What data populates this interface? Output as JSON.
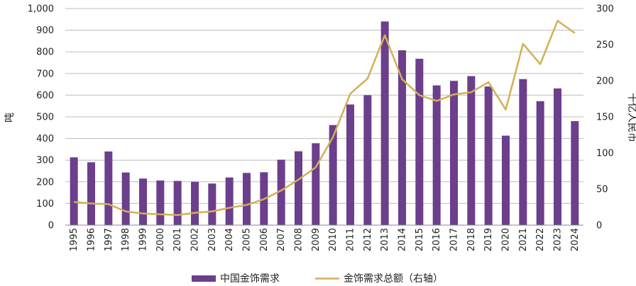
{
  "chart_data": {
    "type": "bar",
    "title": "",
    "xlabel": "",
    "ylabel_left": "吨",
    "ylabel_right": "十亿人民币",
    "ylim_left": [
      0,
      1000
    ],
    "ylim_right": [
      0,
      300
    ],
    "yticks_left": [
      "0",
      "100",
      "200",
      "300",
      "400",
      "500",
      "600",
      "700",
      "800",
      "900",
      "1,000"
    ],
    "yticks_right": [
      "0",
      "50",
      "100",
      "150",
      "200",
      "250",
      "300"
    ],
    "grid": true,
    "legend_position": "bottom",
    "categories": [
      "1995",
      "1996",
      "1997",
      "1998",
      "1999",
      "2000",
      "2001",
      "2002",
      "2003",
      "2004",
      "2005",
      "2006",
      "2007",
      "2008",
      "2009",
      "2010",
      "2011",
      "2012",
      "2013",
      "2014",
      "2015",
      "2016",
      "2017",
      "2018",
      "2019",
      "2020",
      "2021",
      "2022",
      "2023",
      "2024"
    ],
    "series": [
      {
        "name": "中国金饰需求",
        "type": "bar",
        "axis": "left",
        "color": "#6B3F8C",
        "values": [
          313,
          290,
          340,
          243,
          215,
          206,
          204,
          200,
          192,
          220,
          241,
          244,
          302,
          341,
          378,
          462,
          557,
          600,
          940,
          807,
          768,
          645,
          666,
          688,
          640,
          413,
          674,
          572,
          631,
          480
        ]
      },
      {
        "name": "金饰需求总额（右轴）",
        "type": "line",
        "axis": "right",
        "color": "#D4B055",
        "values": [
          32,
          30,
          29,
          19,
          16,
          15,
          14,
          17,
          19,
          24,
          28,
          36,
          48,
          63,
          80,
          122,
          182,
          203,
          263,
          202,
          180,
          172,
          181,
          184,
          198,
          160,
          251,
          223,
          283,
          266
        ]
      }
    ]
  }
}
